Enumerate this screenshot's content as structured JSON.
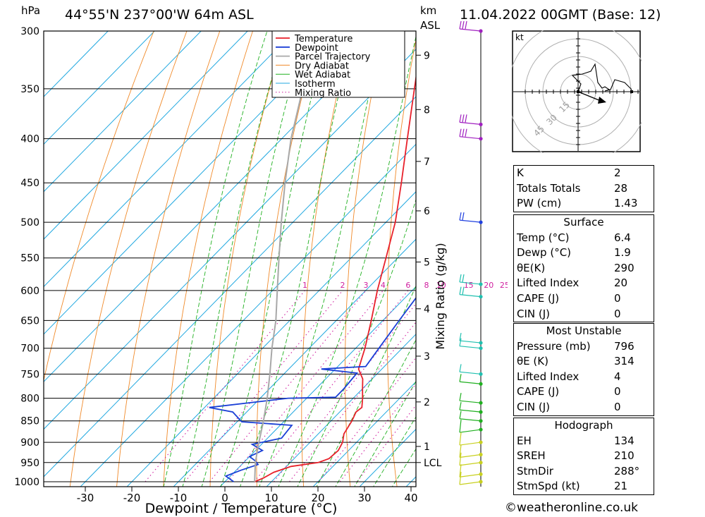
{
  "header": {
    "pressure_unit": "hPa",
    "location": "44°55'N  237°00'W  64m  ASL",
    "height_unit_top": "km",
    "height_unit_bottom": "ASL",
    "datetime": "11.04.2022  00GMT  (Base: 12)"
  },
  "chart_data": {
    "type": "line",
    "subtype": "skew-T log-P diagram",
    "xlabel": "Dewpoint / Temperature (°C)",
    "ylabel": "hPa",
    "secondary_label": "Mixing Ratio (g/kg)",
    "x_ticks": [
      -30,
      -20,
      -10,
      0,
      10,
      20,
      30,
      40
    ],
    "pressure_levels": [
      300,
      350,
      400,
      450,
      500,
      550,
      600,
      650,
      700,
      750,
      800,
      850,
      900,
      950,
      1000
    ],
    "height_ticks_km": [
      {
        "label": "9",
        "p": 320
      },
      {
        "label": "8",
        "p": 370
      },
      {
        "label": "7",
        "p": 425
      },
      {
        "label": "6",
        "p": 485
      },
      {
        "label": "5",
        "p": 556
      },
      {
        "label": "4",
        "p": 630
      },
      {
        "label": "3",
        "p": 715
      },
      {
        "label": "2",
        "p": 808
      },
      {
        "label": "1",
        "p": 910
      },
      {
        "label": "LCL",
        "p": 950
      }
    ],
    "mixing_ratio_labels": [
      "1",
      "2",
      "3",
      "4",
      "6",
      "8",
      "10",
      "15",
      "20",
      "25"
    ],
    "mixing_ratio_values": [
      1,
      2,
      3,
      4,
      6,
      8,
      10,
      15,
      20,
      25
    ],
    "legend": [
      "Temperature",
      "Dewpoint",
      "Parcel Trajectory",
      "Dry Adiabat",
      "Wet Adiabat",
      "Isotherm",
      "Mixing Ratio"
    ],
    "colors": {
      "temperature": "#e8202a",
      "dewpoint": "#1a3fd6",
      "parcel": "#a8a8a8",
      "dry_adiabat": "#f08a2a",
      "wet_adiabat": "#20b020",
      "isotherm": "#20a8e0",
      "mixing_ratio": "#d020a0"
    },
    "series": [
      {
        "name": "Temperature",
        "points": [
          [
            1000,
            6.4
          ],
          [
            990,
            7.5
          ],
          [
            975,
            8.5
          ],
          [
            960,
            11
          ],
          [
            950,
            16
          ],
          [
            940,
            17.5
          ],
          [
            920,
            17.8
          ],
          [
            900,
            17
          ],
          [
            880,
            15.5
          ],
          [
            850,
            14.5
          ],
          [
            830,
            13.5
          ],
          [
            820,
            13.8
          ],
          [
            800,
            12
          ],
          [
            780,
            10
          ],
          [
            760,
            8
          ],
          [
            740,
            5
          ],
          [
            720,
            3.5
          ],
          [
            700,
            2
          ],
          [
            650,
            -2.5
          ],
          [
            600,
            -7.5
          ],
          [
            550,
            -12.5
          ],
          [
            500,
            -18
          ],
          [
            450,
            -25
          ],
          [
            400,
            -33
          ],
          [
            350,
            -42
          ],
          [
            320,
            -48
          ],
          [
            300,
            -52
          ]
        ]
      },
      {
        "name": "Dewpoint",
        "points": [
          [
            1000,
            1.9
          ],
          [
            985,
            -1
          ],
          [
            970,
            1
          ],
          [
            955,
            3.5
          ],
          [
            945,
            2
          ],
          [
            935,
            0
          ],
          [
            920,
            1.5
          ],
          [
            905,
            -2
          ],
          [
            890,
            3
          ],
          [
            860,
            2.5
          ],
          [
            852,
            -9
          ],
          [
            830,
            -13
          ],
          [
            820,
            -19
          ],
          [
            800,
            -4
          ],
          [
            798,
            6
          ],
          [
            780,
            6
          ],
          [
            748,
            5.5
          ],
          [
            740,
            -3
          ],
          [
            735,
            6
          ],
          [
            700,
            5
          ],
          [
            650,
            3.5
          ],
          [
            600,
            2
          ],
          [
            550,
            -2
          ],
          [
            500,
            -8
          ],
          [
            480,
            -6
          ],
          [
            450,
            -9
          ],
          [
            420,
            -9.5
          ],
          [
            400,
            -12
          ],
          [
            380,
            -13
          ],
          [
            350,
            -16
          ],
          [
            340,
            -19
          ],
          [
            330,
            -22
          ],
          [
            320,
            -22
          ],
          [
            310,
            -16
          ],
          [
            305,
            -14
          ],
          [
            300,
            -14
          ]
        ]
      },
      {
        "name": "Parcel Trajectory",
        "points": [
          [
            1000,
            6.4
          ],
          [
            950,
            2.5
          ],
          [
            900,
            -1
          ],
          [
            850,
            -4.5
          ],
          [
            800,
            -8.5
          ],
          [
            750,
            -13
          ],
          [
            700,
            -18
          ],
          [
            650,
            -23
          ],
          [
            600,
            -29
          ],
          [
            550,
            -35.5
          ],
          [
            500,
            -42.5
          ],
          [
            450,
            -50
          ],
          [
            400,
            -58
          ],
          [
            350,
            -66
          ],
          [
            320,
            -71
          ]
        ]
      }
    ],
    "wind_barbs_pressure": [
      300,
      385,
      400,
      500,
      590,
      610,
      690,
      700,
      750,
      770,
      810,
      830,
      850,
      870,
      900,
      930,
      950,
      980,
      1000
    ],
    "hodograph": {
      "unit": "kt",
      "ring_labels": [
        "15",
        "30",
        "45"
      ]
    }
  },
  "indices": {
    "rows": [
      {
        "label": "K",
        "value": "2"
      },
      {
        "label": "Totals Totals",
        "value": "28"
      },
      {
        "label": "PW (cm)",
        "value": "1.43"
      }
    ]
  },
  "surface": {
    "title": "Surface",
    "rows": [
      {
        "label": "Temp (°C)",
        "value": "6.4"
      },
      {
        "label": "Dewp (°C)",
        "value": "1.9"
      },
      {
        "label": "θE(K)",
        "value": "290"
      },
      {
        "label": "Lifted Index",
        "value": "20"
      },
      {
        "label": "CAPE (J)",
        "value": "0"
      },
      {
        "label": "CIN (J)",
        "value": "0"
      }
    ]
  },
  "most_unstable": {
    "title": "Most Unstable",
    "rows": [
      {
        "label": "Pressure (mb)",
        "value": "796"
      },
      {
        "label": "θE (K)",
        "value": "314"
      },
      {
        "label": "Lifted Index",
        "value": "4"
      },
      {
        "label": "CAPE (J)",
        "value": "0"
      },
      {
        "label": "CIN (J)",
        "value": "0"
      }
    ]
  },
  "hodograph_table": {
    "title": "Hodograph",
    "rows": [
      {
        "label": "EH",
        "value": "134"
      },
      {
        "label": "SREH",
        "value": "210"
      },
      {
        "label": "StmDir",
        "value": "288°"
      },
      {
        "label": "StmSpd (kt)",
        "value": "21"
      }
    ]
  },
  "credit": "©weatheronline.co.uk"
}
